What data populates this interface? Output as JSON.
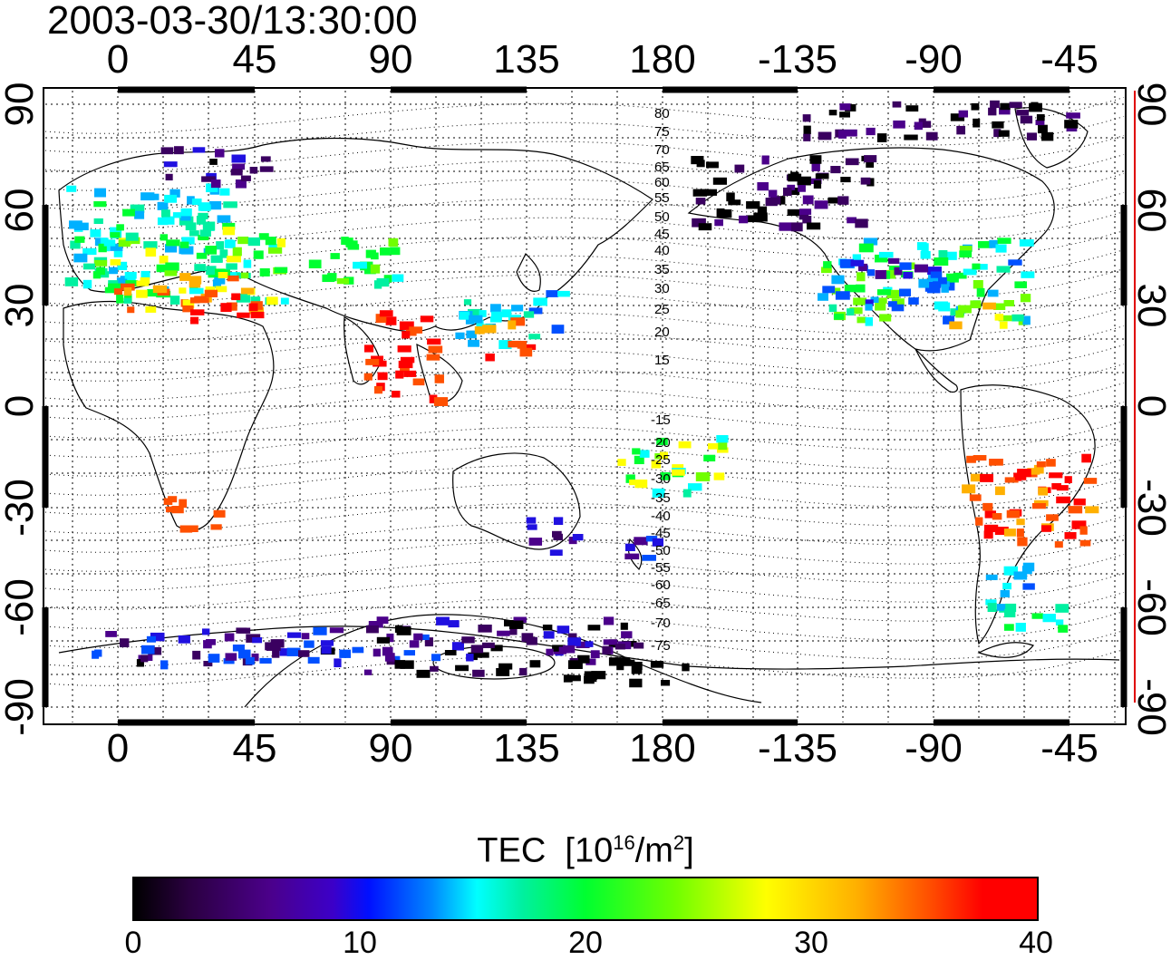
{
  "title": "2003-03-30/13:30:00",
  "lon_ticks": [
    "0",
    "45",
    "90",
    "135",
    "180",
    "-135",
    "-90",
    "-45"
  ],
  "lat_ticks": [
    "90",
    "60",
    "30",
    "0",
    "-30",
    "-60",
    "-90"
  ],
  "mag_lat_labels": [
    "80",
    "75",
    "70",
    "65",
    "60",
    "55",
    "50",
    "45",
    "40",
    "35",
    "30",
    "25",
    "20",
    "15",
    "-15",
    "-20",
    "-25",
    "-30",
    "-35",
    "-40",
    "-45",
    "-50",
    "-55",
    "-60",
    "-65",
    "-70",
    "-75"
  ],
  "colorbar": {
    "label": "TEC",
    "unit_prefix": "[10",
    "unit_exp": "16",
    "unit_mid": "/m",
    "unit_exp2": "2",
    "unit_suffix": "]",
    "ticks": [
      "0",
      "10",
      "20",
      "30",
      "40"
    ]
  }
}
